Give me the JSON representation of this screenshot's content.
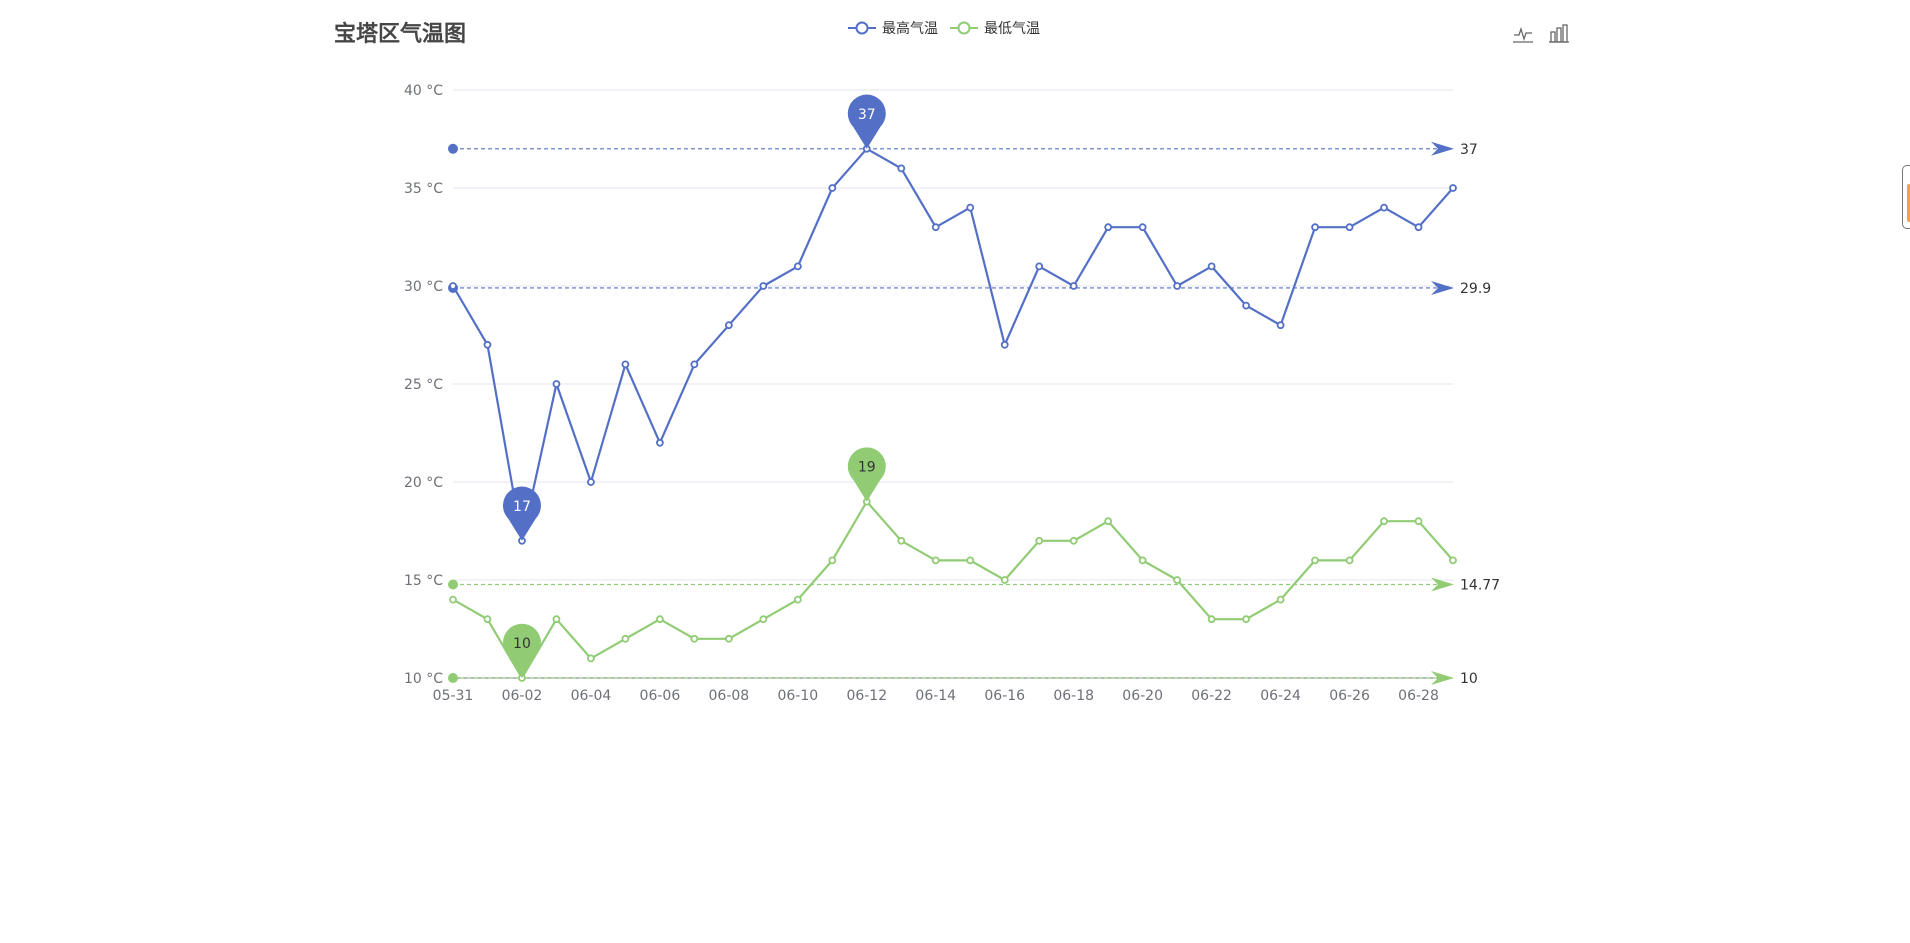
{
  "title": "宝塔区气温图",
  "legend": [
    {
      "name": "最高气温",
      "color": "#5470c6"
    },
    {
      "name": "最低气温",
      "color": "#91cc75"
    }
  ],
  "toolbox": [
    {
      "name": "line-chart-icon"
    },
    {
      "name": "bar-chart-icon"
    }
  ],
  "chart_data": {
    "type": "line",
    "x": [
      "05-31",
      "06-01",
      "06-02",
      "06-03",
      "06-04",
      "06-05",
      "06-06",
      "06-07",
      "06-08",
      "06-09",
      "06-10",
      "06-11",
      "06-12",
      "06-13",
      "06-14",
      "06-15",
      "06-16",
      "06-17",
      "06-18",
      "06-19",
      "06-20",
      "06-21",
      "06-22",
      "06-23",
      "06-24",
      "06-25",
      "06-26",
      "06-27",
      "06-28",
      "06-29"
    ],
    "x_tick_labels": [
      "05-31",
      "06-02",
      "06-04",
      "06-06",
      "06-08",
      "06-10",
      "06-12",
      "06-14",
      "06-16",
      "06-18",
      "06-20",
      "06-22",
      "06-24",
      "06-26",
      "06-28"
    ],
    "y_ticks": [
      10,
      15,
      20,
      25,
      30,
      35,
      40
    ],
    "y_tick_labels": [
      "10 °C",
      "15 °C",
      "20 °C",
      "25 °C",
      "30 °C",
      "35 °C",
      "40 °C"
    ],
    "ylim": [
      10,
      40
    ],
    "grid": true,
    "legend_position": "top-center",
    "series": [
      {
        "name": "最高气温",
        "color": "#5470c6",
        "values": [
          30,
          27,
          17,
          25,
          20,
          26,
          22,
          26,
          28,
          30,
          31,
          35,
          37,
          36,
          33,
          34,
          27,
          31,
          30,
          33,
          33,
          30,
          31,
          29,
          28,
          33,
          33,
          34,
          33,
          35
        ],
        "max_pin": {
          "label": "37",
          "index": 12,
          "value": 37
        },
        "min_pin": {
          "label": "17",
          "index": 2,
          "value": 17
        },
        "mark_lines": [
          {
            "label": "37",
            "value": 37
          },
          {
            "label": "29.9",
            "value": 29.9
          }
        ]
      },
      {
        "name": "最低气温",
        "color": "#91cc75",
        "values": [
          14,
          13,
          10,
          13,
          11,
          12,
          13,
          12,
          12,
          13,
          14,
          16,
          19,
          17,
          16,
          16,
          15,
          17,
          17,
          18,
          16,
          15,
          13,
          13,
          14,
          16,
          16,
          18,
          18,
          16
        ],
        "max_pin": {
          "label": "19",
          "index": 12,
          "value": 19
        },
        "min_pin": {
          "label": "10",
          "index": 2,
          "value": 10
        },
        "mark_lines": [
          {
            "label": "14.77",
            "value": 14.77
          },
          {
            "label": "10",
            "value": 10
          }
        ]
      }
    ]
  }
}
